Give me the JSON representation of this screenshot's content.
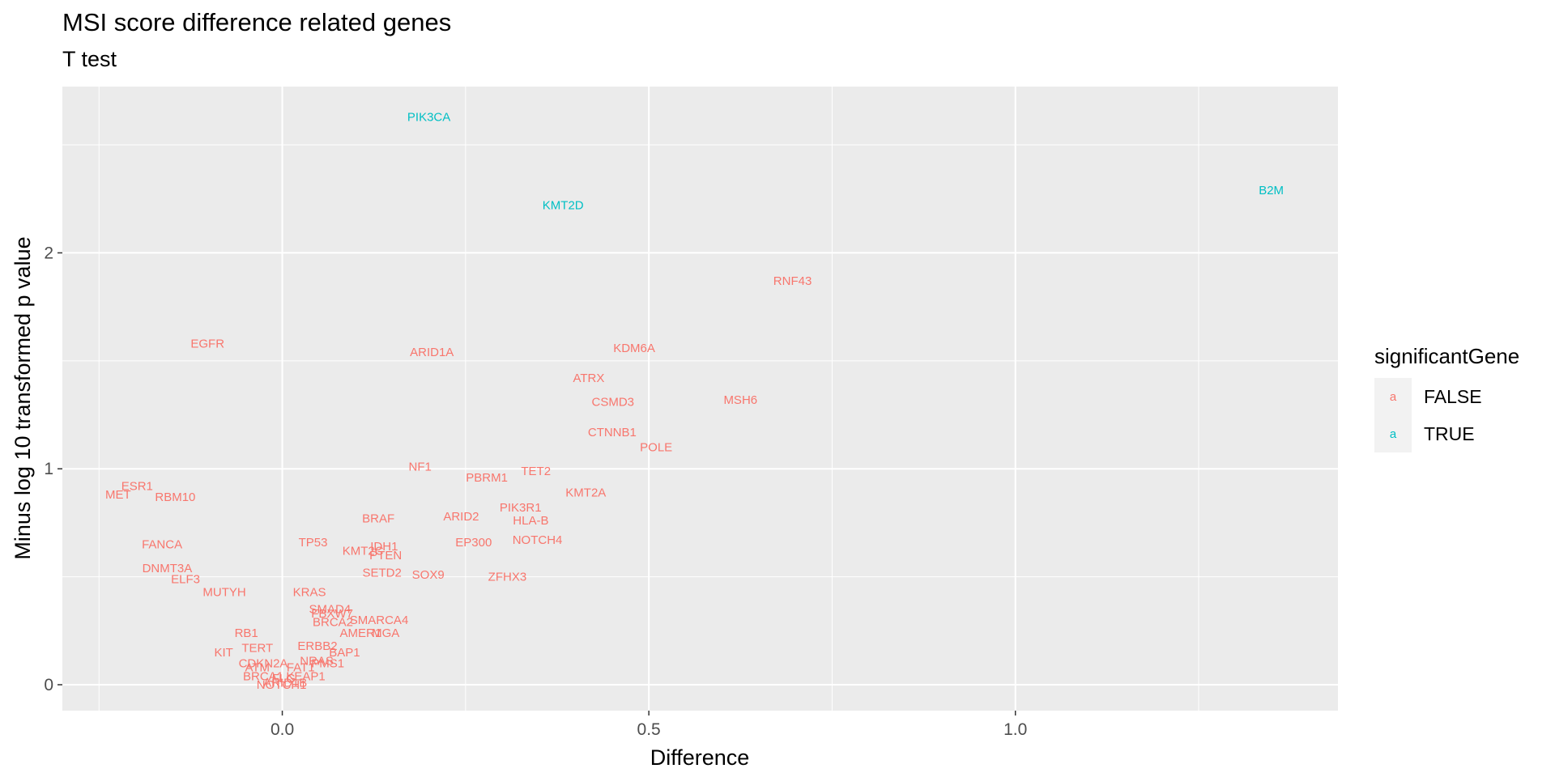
{
  "chart_data": {
    "type": "scatter",
    "title": "MSI score difference related genes",
    "subtitle": "T test",
    "xlabel": "Difference",
    "ylabel": "Minus log 10 transformed p value",
    "xlim": [
      -0.3,
      1.44
    ],
    "ylim": [
      -0.12,
      2.77
    ],
    "xticks": [
      0.0,
      0.5,
      1.0
    ],
    "xtick_labels": [
      "0.0",
      "0.5",
      "1.0"
    ],
    "yticks": [
      0,
      1,
      2
    ],
    "ytick_labels": [
      "0",
      "1",
      "2"
    ],
    "grid": true,
    "legend": {
      "title": "significantGene",
      "position": "right",
      "key_glyph": "a",
      "entries": [
        {
          "label": "FALSE",
          "color": "#F8766D"
        },
        {
          "label": "TRUE",
          "color": "#00BFC4"
        }
      ]
    },
    "colors": {
      "FALSE": "#F8766D",
      "TRUE": "#00BFC4",
      "panel": "#EBEBEB",
      "grid": "#FFFFFF"
    },
    "points": [
      {
        "label": "PIK3CA",
        "x": 0.2,
        "y": 2.63,
        "sig": true
      },
      {
        "label": "KMT2D",
        "x": 0.383,
        "y": 2.22,
        "sig": true
      },
      {
        "label": "B2M",
        "x": 1.349,
        "y": 2.29,
        "sig": true
      },
      {
        "label": "RNF43",
        "x": 0.696,
        "y": 1.87,
        "sig": false
      },
      {
        "label": "EGFR",
        "x": -0.102,
        "y": 1.58,
        "sig": false
      },
      {
        "label": "ARID1A",
        "x": 0.204,
        "y": 1.54,
        "sig": false
      },
      {
        "label": "KDM6A",
        "x": 0.48,
        "y": 1.56,
        "sig": false
      },
      {
        "label": "ATRX",
        "x": 0.418,
        "y": 1.42,
        "sig": false
      },
      {
        "label": "MSH6",
        "x": 0.625,
        "y": 1.32,
        "sig": false
      },
      {
        "label": "CSMD3",
        "x": 0.451,
        "y": 1.31,
        "sig": false
      },
      {
        "label": "CTNNB1",
        "x": 0.45,
        "y": 1.17,
        "sig": false
      },
      {
        "label": "POLE",
        "x": 0.51,
        "y": 1.1,
        "sig": false
      },
      {
        "label": "NF1",
        "x": 0.188,
        "y": 1.01,
        "sig": false
      },
      {
        "label": "TET2",
        "x": 0.346,
        "y": 0.99,
        "sig": false
      },
      {
        "label": "PBRM1",
        "x": 0.279,
        "y": 0.96,
        "sig": false
      },
      {
        "label": "ESR1",
        "x": -0.198,
        "y": 0.92,
        "sig": false
      },
      {
        "label": "MET",
        "x": -0.224,
        "y": 0.88,
        "sig": false
      },
      {
        "label": "RBM10",
        "x": -0.146,
        "y": 0.87,
        "sig": false
      },
      {
        "label": "KMT2A",
        "x": 0.414,
        "y": 0.89,
        "sig": false
      },
      {
        "label": "PIK3R1",
        "x": 0.325,
        "y": 0.82,
        "sig": false
      },
      {
        "label": "BRAF",
        "x": 0.131,
        "y": 0.77,
        "sig": false
      },
      {
        "label": "ARID2",
        "x": 0.244,
        "y": 0.78,
        "sig": false
      },
      {
        "label": "HLA-B",
        "x": 0.339,
        "y": 0.76,
        "sig": false
      },
      {
        "label": "NOTCH4",
        "x": 0.348,
        "y": 0.67,
        "sig": false
      },
      {
        "label": "EP300",
        "x": 0.261,
        "y": 0.66,
        "sig": false
      },
      {
        "label": "FANCA",
        "x": -0.164,
        "y": 0.65,
        "sig": false
      },
      {
        "label": "TP53",
        "x": 0.042,
        "y": 0.66,
        "sig": false
      },
      {
        "label": "IDH1",
        "x": 0.139,
        "y": 0.64,
        "sig": false
      },
      {
        "label": "KMT2C",
        "x": 0.11,
        "y": 0.62,
        "sig": false
      },
      {
        "label": "PTEN",
        "x": 0.141,
        "y": 0.6,
        "sig": false
      },
      {
        "label": "DNMT3A",
        "x": -0.157,
        "y": 0.54,
        "sig": false
      },
      {
        "label": "SETD2",
        "x": 0.136,
        "y": 0.52,
        "sig": false
      },
      {
        "label": "SOX9",
        "x": 0.199,
        "y": 0.51,
        "sig": false
      },
      {
        "label": "ZFHX3",
        "x": 0.307,
        "y": 0.5,
        "sig": false
      },
      {
        "label": "ELF3",
        "x": -0.132,
        "y": 0.49,
        "sig": false
      },
      {
        "label": "MUTYH",
        "x": -0.079,
        "y": 0.43,
        "sig": false
      },
      {
        "label": "KRAS",
        "x": 0.037,
        "y": 0.43,
        "sig": false
      },
      {
        "label": "SMAD4",
        "x": 0.065,
        "y": 0.35,
        "sig": false
      },
      {
        "label": "FBXW7",
        "x": 0.068,
        "y": 0.33,
        "sig": false
      },
      {
        "label": "SMARCA4",
        "x": 0.132,
        "y": 0.3,
        "sig": false
      },
      {
        "label": "BRCA2",
        "x": 0.069,
        "y": 0.29,
        "sig": false
      },
      {
        "label": "AMER1",
        "x": 0.107,
        "y": 0.24,
        "sig": false
      },
      {
        "label": "MGA",
        "x": 0.141,
        "y": 0.24,
        "sig": false
      },
      {
        "label": "RB1",
        "x": -0.049,
        "y": 0.24,
        "sig": false
      },
      {
        "label": "ERBB2",
        "x": 0.048,
        "y": 0.18,
        "sig": false
      },
      {
        "label": "TERT",
        "x": -0.034,
        "y": 0.17,
        "sig": false
      },
      {
        "label": "KIT",
        "x": -0.08,
        "y": 0.15,
        "sig": false
      },
      {
        "label": "BAP1",
        "x": 0.085,
        "y": 0.15,
        "sig": false
      },
      {
        "label": "NRAS",
        "x": 0.047,
        "y": 0.11,
        "sig": false
      },
      {
        "label": "PMS1",
        "x": 0.062,
        "y": 0.1,
        "sig": false
      },
      {
        "label": "CDKN2A",
        "x": -0.026,
        "y": 0.1,
        "sig": false
      },
      {
        "label": "FAT1",
        "x": 0.025,
        "y": 0.08,
        "sig": false
      },
      {
        "label": "ATM",
        "x": -0.034,
        "y": 0.08,
        "sig": false
      },
      {
        "label": "BRCA1",
        "x": -0.026,
        "y": 0.04,
        "sig": false
      },
      {
        "label": "FLG",
        "x": 0.002,
        "y": 0.03,
        "sig": false
      },
      {
        "label": "KEAP1",
        "x": 0.032,
        "y": 0.04,
        "sig": false
      },
      {
        "label": "ARID1B",
        "x": 0.004,
        "y": 0.01,
        "sig": false
      },
      {
        "label": "NOTCH1",
        "x": -0.001,
        "y": 0,
        "sig": false
      }
    ]
  }
}
